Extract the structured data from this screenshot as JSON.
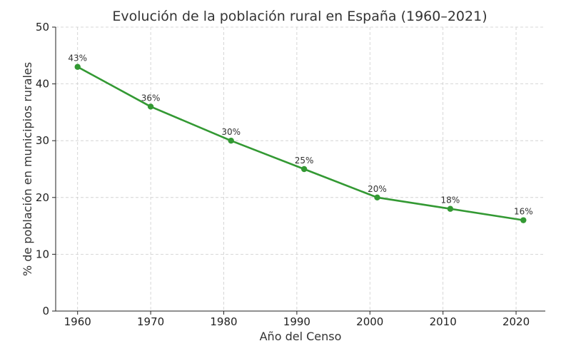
{
  "chart_data": {
    "type": "line",
    "title": "Evolución de la población rural en España (1960–2021)",
    "xlabel": "Año del Censo",
    "ylabel": "% de población en municipios rurales",
    "x": [
      1960,
      1970,
      1981,
      1991,
      2001,
      2011,
      2021
    ],
    "series": [
      {
        "values": [
          43,
          36,
          30,
          25,
          20,
          18,
          16
        ],
        "labels": [
          "43%",
          "36%",
          "30%",
          "25%",
          "20%",
          "18%",
          "16%"
        ],
        "color": "#339933"
      }
    ],
    "xticks": [
      1960,
      1970,
      1980,
      1990,
      2000,
      2010,
      2020
    ],
    "xtick_labels": [
      "1960",
      "1970",
      "1980",
      "1990",
      "2000",
      "2010",
      "2020"
    ],
    "yticks": [
      0,
      10,
      20,
      30,
      40,
      50
    ],
    "ytick_labels": [
      "0",
      "10",
      "20",
      "30",
      "40",
      "50"
    ],
    "xlim": [
      1957,
      2024
    ],
    "ylim": [
      0,
      50
    ],
    "grid": true,
    "marker": "circle"
  }
}
